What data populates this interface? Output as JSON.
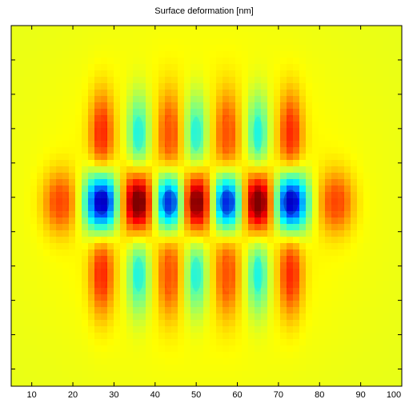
{
  "chart_data": {
    "type": "heatmap",
    "title": "Surface deformation [nm]",
    "xlabel": "",
    "ylabel": "",
    "xlim": [
      5,
      100
    ],
    "x_ticks": [
      10,
      20,
      30,
      40,
      50,
      60,
      70,
      80,
      90,
      100
    ],
    "x_tick_labels": [
      "10",
      "20",
      "30",
      "40",
      "50",
      "60",
      "70",
      "80",
      "90",
      "100"
    ],
    "y_tick_count": 10,
    "grid": false,
    "colormap": "jet",
    "value_range": [
      -1,
      1
    ],
    "background_level": 0.2,
    "blobs": [
      {
        "x": 17,
        "row": "center",
        "value": 0.55
      },
      {
        "x": 27,
        "row": "center",
        "value": -1.0
      },
      {
        "x": 36,
        "row": "center",
        "value": 1.0
      },
      {
        "x": 43.5,
        "row": "center",
        "value": -0.9
      },
      {
        "x": 50,
        "row": "center",
        "value": 1.0
      },
      {
        "x": 57.5,
        "row": "center",
        "value": -0.9
      },
      {
        "x": 65,
        "row": "center",
        "value": 1.0
      },
      {
        "x": 73,
        "row": "center",
        "value": -1.0
      },
      {
        "x": 84,
        "row": "center",
        "value": 0.55
      },
      {
        "x": 27,
        "row": "upper",
        "value": 0.6
      },
      {
        "x": 36,
        "row": "upper",
        "value": -0.3
      },
      {
        "x": 43.5,
        "row": "upper",
        "value": 0.5
      },
      {
        "x": 50,
        "row": "upper",
        "value": -0.3
      },
      {
        "x": 57.5,
        "row": "upper",
        "value": 0.5
      },
      {
        "x": 65,
        "row": "upper",
        "value": -0.3
      },
      {
        "x": 73,
        "row": "upper",
        "value": 0.6
      },
      {
        "x": 27,
        "row": "lower",
        "value": 0.6
      },
      {
        "x": 36,
        "row": "lower",
        "value": -0.3
      },
      {
        "x": 43.5,
        "row": "lower",
        "value": 0.5
      },
      {
        "x": 50,
        "row": "lower",
        "value": -0.3
      },
      {
        "x": 57.5,
        "row": "lower",
        "value": 0.5
      },
      {
        "x": 65,
        "row": "lower",
        "value": -0.3
      },
      {
        "x": 73,
        "row": "lower",
        "value": 0.6
      }
    ]
  }
}
